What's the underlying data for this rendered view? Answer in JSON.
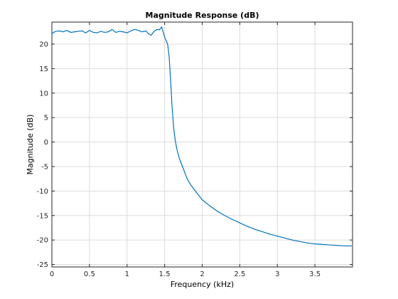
{
  "chart_data": {
    "type": "line",
    "title": "Magnitude Response (dB)",
    "xlabel": "Frequency (kHz)",
    "ylabel": "Magnitude (dB)",
    "xlim": [
      0,
      4.0
    ],
    "ylim": [
      -25.5,
      24.5
    ],
    "x_ticks": [
      0,
      0.5,
      1,
      1.5,
      2,
      2.5,
      3,
      3.5
    ],
    "x_tick_labels": [
      "0",
      "0.5",
      "1",
      "1.5",
      "2",
      "2.5",
      "3",
      "3.5"
    ],
    "y_ticks": [
      -25,
      -20,
      -15,
      -10,
      -5,
      0,
      5,
      10,
      15,
      20
    ],
    "y_tick_labels": [
      "-25",
      "-20",
      "-15",
      "-10",
      "-5",
      "0",
      "5",
      "10",
      "15",
      "20"
    ],
    "grid": true,
    "line_color": "#0072BD",
    "series": [
      {
        "x": [
          0,
          0.05,
          0.1,
          0.15,
          0.2,
          0.25,
          0.3,
          0.35,
          0.4,
          0.45,
          0.5,
          0.55,
          0.6,
          0.65,
          0.7,
          0.75,
          0.8,
          0.85,
          0.9,
          0.95,
          1.0,
          1.05,
          1.1,
          1.15,
          1.2,
          1.25,
          1.28,
          1.32,
          1.36,
          1.4,
          1.43,
          1.46,
          1.48,
          1.5,
          1.52,
          1.54,
          1.56,
          1.58,
          1.6,
          1.62,
          1.64,
          1.66,
          1.68,
          1.7,
          1.75,
          1.8,
          1.85,
          1.9,
          1.95,
          2.0,
          2.1,
          2.2,
          2.3,
          2.4,
          2.5,
          2.6,
          2.7,
          2.8,
          2.9,
          3.0,
          3.1,
          3.2,
          3.3,
          3.4,
          3.5,
          3.6,
          3.7,
          3.8,
          3.9,
          3.99
        ],
        "y": [
          22.2,
          22.6,
          22.7,
          22.5,
          22.8,
          22.4,
          22.5,
          22.6,
          22.7,
          22.3,
          22.8,
          22.4,
          22.3,
          22.6,
          22.4,
          22.5,
          23.0,
          22.4,
          22.6,
          22.5,
          22.3,
          22.7,
          23.0,
          22.8,
          22.5,
          22.7,
          22.2,
          21.8,
          22.6,
          23.0,
          22.9,
          23.5,
          22.5,
          21.4,
          20.7,
          20.0,
          17.5,
          12.5,
          7.0,
          3.0,
          0.5,
          -1.2,
          -2.5,
          -3.5,
          -5.5,
          -7.5,
          -8.8,
          -9.8,
          -10.8,
          -11.8,
          -13.0,
          -14.1,
          -15.0,
          -15.8,
          -16.5,
          -17.2,
          -17.8,
          -18.3,
          -18.8,
          -19.2,
          -19.6,
          -20.0,
          -20.3,
          -20.6,
          -20.8,
          -20.9,
          -21.0,
          -21.1,
          -21.2,
          -21.2
        ]
      }
    ]
  }
}
